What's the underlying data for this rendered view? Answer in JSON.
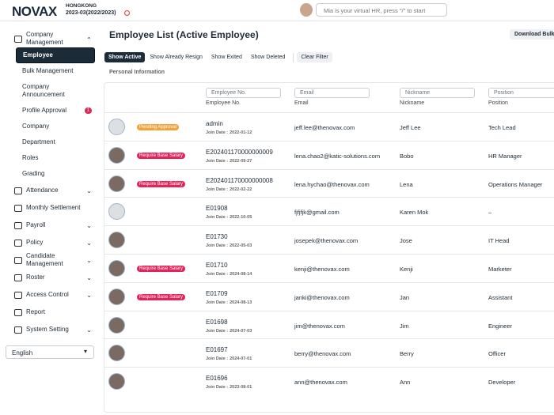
{
  "header": {
    "logo": "NOVAX",
    "region": "HONGKONG",
    "period": "2023-03(2022/2023)",
    "search_placeholder": "Mia is your virtual HR, press \"/\" to start"
  },
  "sidebar": {
    "menu": [
      {
        "label": "Company Management",
        "expanded": true,
        "children": [
          {
            "label": "Employee",
            "active": true
          },
          {
            "label": "Bulk Management"
          },
          {
            "label": "Company Announcement"
          },
          {
            "label": "Profile Approval",
            "badge": 1
          },
          {
            "label": "Company"
          },
          {
            "label": "Department"
          },
          {
            "label": "Roles"
          },
          {
            "label": "Grading"
          }
        ]
      },
      {
        "label": "Attendance",
        "expandable": true
      },
      {
        "label": "Monthly Settlement"
      },
      {
        "label": "Payroll",
        "expandable": true
      },
      {
        "label": "Policy",
        "expandable": true
      },
      {
        "label": "Candidate Management",
        "expandable": true
      },
      {
        "label": "Roster",
        "expandable": true
      },
      {
        "label": "Access Control",
        "expandable": true
      },
      {
        "label": "Report"
      },
      {
        "label": "System Setting",
        "expandable": true
      }
    ],
    "language": "English"
  },
  "main": {
    "title": "Employee List (Active Employee)",
    "download_button": "Download Bulk I",
    "tabs": [
      {
        "label": "Show Active",
        "active": true
      },
      {
        "label": "Show Already Resign"
      },
      {
        "label": "Show Exited"
      },
      {
        "label": "Show Deleted"
      }
    ],
    "clear_filter": "Clear Filter",
    "section": "Personal Information",
    "table": {
      "columns": [
        {
          "filter": "Employee No.",
          "header": "Employee No."
        },
        {
          "filter": "Email",
          "header": "Email"
        },
        {
          "filter": "Nickname",
          "header": "Nickname"
        },
        {
          "filter": "Position",
          "header": "Position"
        }
      ],
      "join_date_label": "Join Date :",
      "rows": [
        {
          "status": {
            "label": "Pending Approval",
            "color": "#f2a33a"
          },
          "employee_no": "admin",
          "join_date": "2022-01-12",
          "email": "jeff.lee@thenovax.com",
          "nickname": "Jeff Lee",
          "position": "Tech Lead"
        },
        {
          "status": {
            "label": "Require Base Salary",
            "color": "#e3245a"
          },
          "employee_no": "E202401170000000009",
          "join_date": "2022-09-27",
          "email": "lena.chao2@katic-solutions.com",
          "nickname": "Bobo",
          "position": "HR Manager"
        },
        {
          "status": {
            "label": "Require Base Salary",
            "color": "#e3245a"
          },
          "employee_no": "E202401170000000008",
          "join_date": "2022-02-22",
          "email": "lena.hychao@thenovax.com",
          "nickname": "Lena",
          "position": "Operations Manager"
        },
        {
          "employee_no": "E01908",
          "join_date": "2022-10-05",
          "email": "fjfjfjk@gmail.com",
          "nickname": "Karen Mok",
          "position": "–"
        },
        {
          "employee_no": "E01730",
          "join_date": "2022-05-03",
          "email": "josepek@thenovax.com",
          "nickname": "Jose",
          "position": "IT Head"
        },
        {
          "status": {
            "label": "Require Base Salary",
            "color": "#e3245a"
          },
          "employee_no": "E01710",
          "join_date": "2024-08-14",
          "email": "kenji@thenovax.com",
          "nickname": "Kenji",
          "position": "Marketer"
        },
        {
          "status": {
            "label": "Require Base Salary",
            "color": "#e3245a"
          },
          "employee_no": "E01709",
          "join_date": "2024-08-13",
          "email": "janki@thenovax.com",
          "nickname": "Jan",
          "position": "Assistant"
        },
        {
          "employee_no": "E01698",
          "join_date": "2024-07-03",
          "email": "jim@thenovax.com",
          "nickname": "Jim",
          "position": "Engineer"
        },
        {
          "employee_no": "E01697",
          "join_date": "2024-07-01",
          "email": "berry@thenovax.com",
          "nickname": "Berry",
          "position": "Officer"
        },
        {
          "employee_no": "E01696",
          "join_date": "2023-08-01",
          "email": "ann@thenovax.com",
          "nickname": "Ann",
          "position": "Developer"
        }
      ]
    }
  }
}
